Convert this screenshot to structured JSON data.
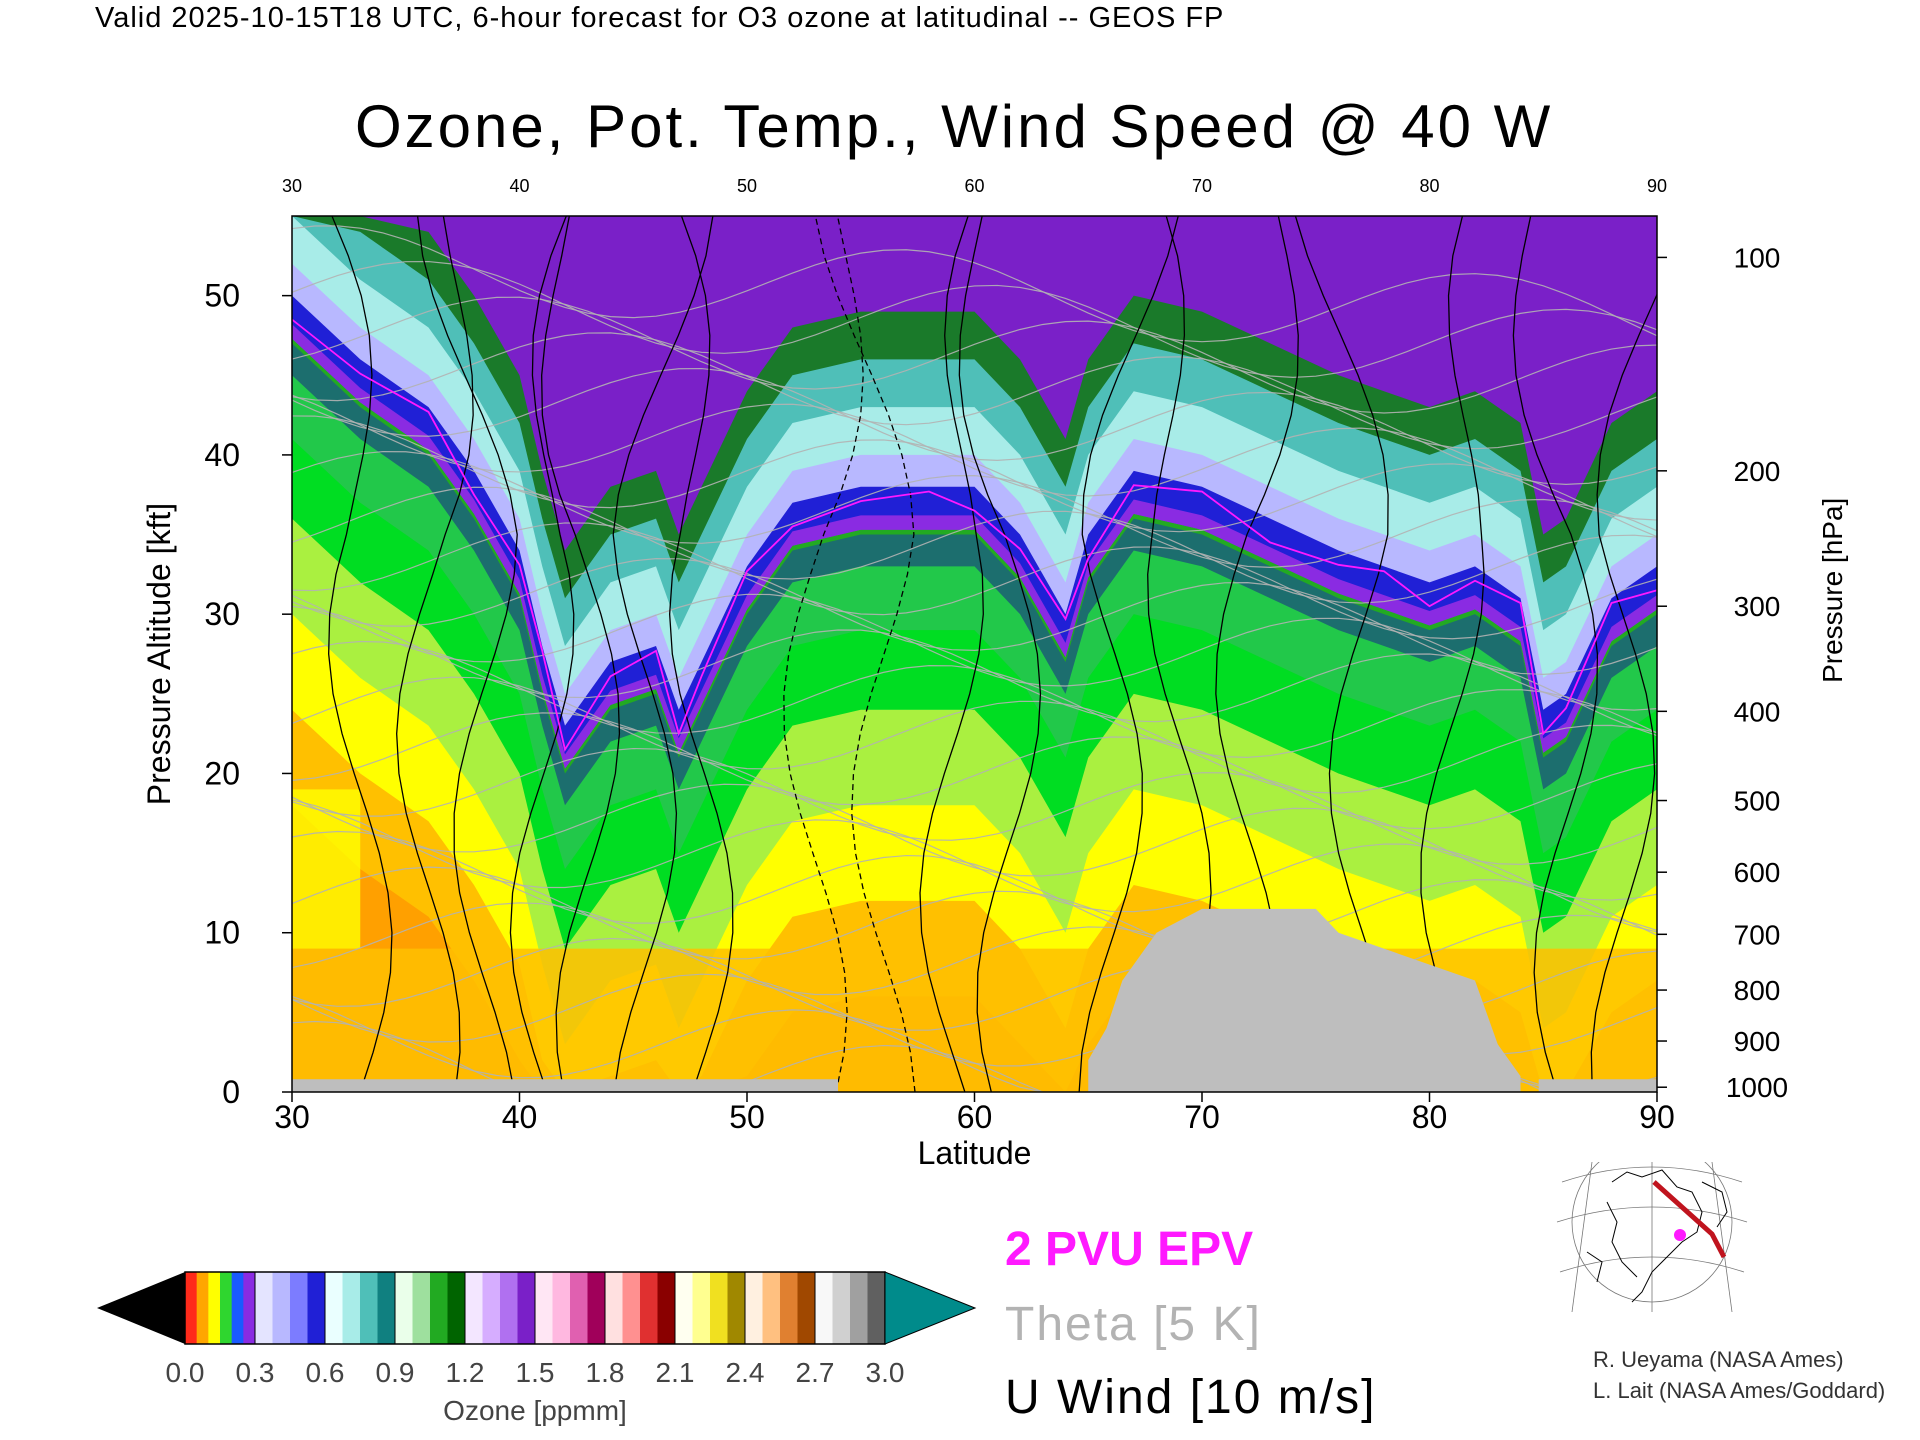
{
  "header": "Valid 2025-10-15T18 UTC, 6-hour forecast for O3 ozone at latitudinal -- GEOS FP",
  "chart_data": {
    "type": "heatmap",
    "title": "Ozone, Pot. Temp., Wind Speed @ 40 W",
    "xlabel": "Latitude",
    "ylabel": "Pressure Altitude [kft]",
    "y2label": "Pressure [hPa]",
    "xlim": [
      30,
      90
    ],
    "ylim": [
      0,
      55
    ],
    "x_ticks": [
      30,
      40,
      50,
      60,
      70,
      80,
      90
    ],
    "y_ticks": [
      0,
      10,
      20,
      30,
      40,
      50
    ],
    "pressure_ticks": [
      {
        "label": "100",
        "alt": 52.4
      },
      {
        "label": "200",
        "alt": 39.0
      },
      {
        "label": "300",
        "alt": 30.5
      },
      {
        "label": "400",
        "alt": 23.9
      },
      {
        "label": "500",
        "alt": 18.3
      },
      {
        "label": "600",
        "alt": 13.8
      },
      {
        "label": "700",
        "alt": 9.9
      },
      {
        "label": "800",
        "alt": 6.4
      },
      {
        "label": "900",
        "alt": 3.2
      },
      {
        "label": "1000",
        "alt": 0.3
      }
    ],
    "tropopause_boundary": [
      {
        "x": 30,
        "y": 47
      },
      {
        "x": 33,
        "y": 43
      },
      {
        "x": 36,
        "y": 40
      },
      {
        "x": 38,
        "y": 36
      },
      {
        "x": 40,
        "y": 31
      },
      {
        "x": 41,
        "y": 25
      },
      {
        "x": 42,
        "y": 20
      },
      {
        "x": 44,
        "y": 24
      },
      {
        "x": 46,
        "y": 25
      },
      {
        "x": 47,
        "y": 21
      },
      {
        "x": 48,
        "y": 24
      },
      {
        "x": 50,
        "y": 30
      },
      {
        "x": 52,
        "y": 34
      },
      {
        "x": 55,
        "y": 35
      },
      {
        "x": 58,
        "y": 35
      },
      {
        "x": 60,
        "y": 35
      },
      {
        "x": 62,
        "y": 32
      },
      {
        "x": 64,
        "y": 27
      },
      {
        "x": 65,
        "y": 32
      },
      {
        "x": 67,
        "y": 36
      },
      {
        "x": 70,
        "y": 35
      },
      {
        "x": 73,
        "y": 33
      },
      {
        "x": 76,
        "y": 31
      },
      {
        "x": 78,
        "y": 30
      },
      {
        "x": 80,
        "y": 29
      },
      {
        "x": 82,
        "y": 30
      },
      {
        "x": 84,
        "y": 28
      },
      {
        "x": 85,
        "y": 21
      },
      {
        "x": 86,
        "y": 22
      },
      {
        "x": 88,
        "y": 28
      },
      {
        "x": 90,
        "y": 30
      }
    ],
    "terrain": [
      {
        "x": 65,
        "y": 2
      },
      {
        "x": 65.8,
        "y": 4
      },
      {
        "x": 66.5,
        "y": 7
      },
      {
        "x": 68,
        "y": 10
      },
      {
        "x": 70,
        "y": 11.5
      },
      {
        "x": 75,
        "y": 11.5
      },
      {
        "x": 76,
        "y": 10
      },
      {
        "x": 78,
        "y": 9
      },
      {
        "x": 80,
        "y": 8
      },
      {
        "x": 82,
        "y": 7
      },
      {
        "x": 83,
        "y": 3
      },
      {
        "x": 84,
        "y": 1
      }
    ],
    "colorbar": {
      "label": "Ozone [ppmm]",
      "ticks": [
        "0.0",
        "0.3",
        "0.6",
        "0.9",
        "1.2",
        "1.5",
        "1.8",
        "2.1",
        "2.4",
        "2.7",
        "3.0"
      ],
      "groups": [
        [
          "#ff2a1a",
          "#ffa600",
          "#ffff00",
          "#2fd62f",
          "#1a5aff",
          "#8a2be2"
        ],
        [
          "#e4e4ff",
          "#b8b8ff",
          "#7c7cff",
          "#2020d6"
        ],
        [
          "#eaffff",
          "#a8ece8",
          "#4fbfb8",
          "#108080"
        ],
        [
          "#eaffea",
          "#9ee09e",
          "#22aa22",
          "#006400"
        ],
        [
          "#f3e6ff",
          "#d6adff",
          "#b070f0",
          "#7a20c8"
        ],
        [
          "#ffe6f4",
          "#ffb8e0",
          "#e060b0",
          "#a0005a"
        ],
        [
          "#ffe0e0",
          "#ff9090",
          "#e03030",
          "#8a0000"
        ],
        [
          "#fffff0",
          "#ffff90",
          "#f0e020",
          "#a08800"
        ],
        [
          "#fff0e0",
          "#ffc080",
          "#e08030",
          "#a04800"
        ],
        [
          "#f8f8f8",
          "#d0d0d0",
          "#a0a0a0",
          "#606060"
        ]
      ]
    },
    "legend": [
      "2 PVU EPV",
      "Theta [5 K]",
      "U Wind [10 m/s]"
    ]
  },
  "credits": [
    "R. Ueyama (NASA Ames)",
    "L. Lait (NASA Ames/Goddard)"
  ],
  "colors": {
    "epv": "#ff19ff",
    "theta": "#b3b3b3",
    "terrain": "#bebebe",
    "arrow_end": "#008b8b"
  }
}
